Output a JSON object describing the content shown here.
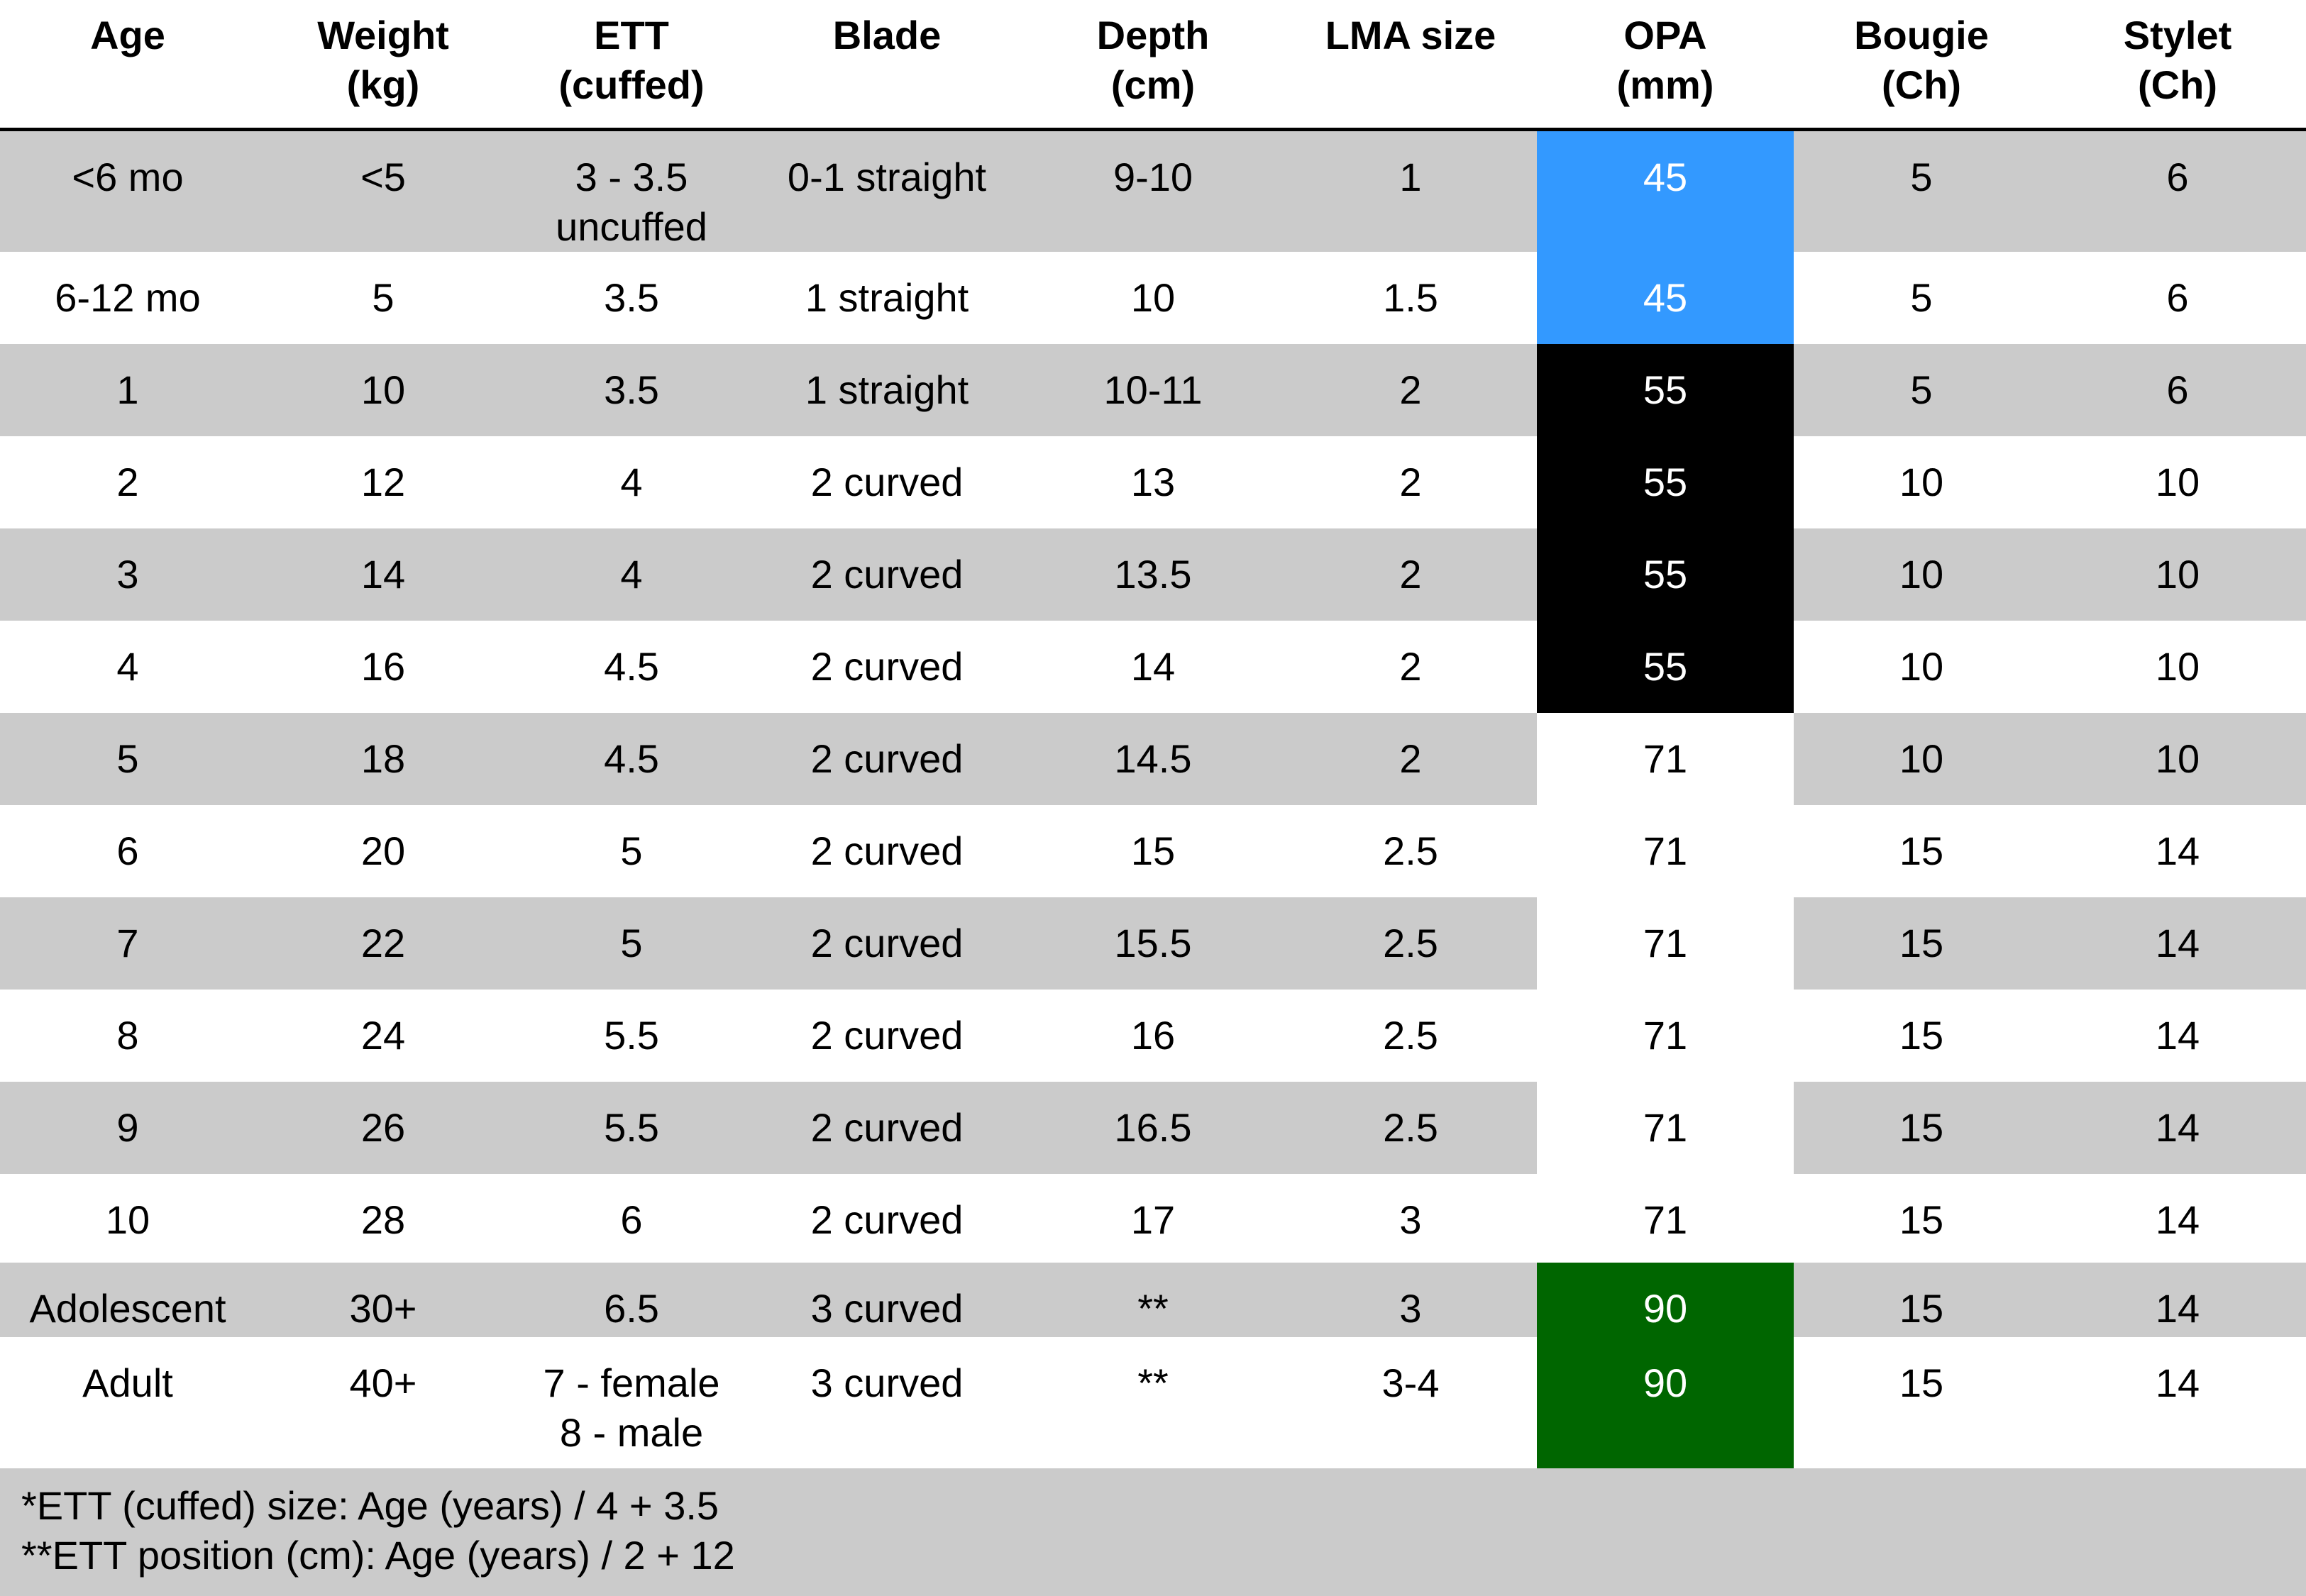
{
  "columns": [
    {
      "label": [
        "Age"
      ]
    },
    {
      "label": [
        "Weight",
        "(kg)"
      ]
    },
    {
      "label": [
        "ETT",
        "(cuffed)"
      ]
    },
    {
      "label": [
        "Blade"
      ]
    },
    {
      "label": [
        "Depth",
        "(cm)"
      ]
    },
    {
      "label": [
        "LMA size"
      ]
    },
    {
      "label": [
        "OPA",
        "(mm)"
      ]
    },
    {
      "label": [
        "Bougie",
        "(Ch)"
      ]
    },
    {
      "label": [
        "Stylet",
        "(Ch)"
      ]
    }
  ],
  "colors": {
    "stripe": "#cbcbcb",
    "white": "#ffffff",
    "opa_blue": "#3399ff",
    "opa_black": "#000000",
    "opa_green": "#006600"
  },
  "rows": [
    {
      "cells": [
        [
          "<6 mo"
        ],
        [
          "<5"
        ],
        [
          "3 - 3.5",
          "uncuffed"
        ],
        [
          "0-1 straight"
        ],
        [
          "9-10"
        ],
        [
          "1"
        ],
        [
          "45"
        ],
        [
          "5"
        ],
        [
          "6"
        ]
      ],
      "opa_color": "opa_blue"
    },
    {
      "cells": [
        [
          "6-12 mo"
        ],
        [
          "5"
        ],
        [
          "3.5"
        ],
        [
          "1 straight"
        ],
        [
          "10"
        ],
        [
          "1.5"
        ],
        [
          "45"
        ],
        [
          "5"
        ],
        [
          "6"
        ]
      ],
      "opa_color": "opa_blue"
    },
    {
      "cells": [
        [
          "1"
        ],
        [
          "10"
        ],
        [
          "3.5"
        ],
        [
          "1 straight"
        ],
        [
          "10-11"
        ],
        [
          "2"
        ],
        [
          "55"
        ],
        [
          "5"
        ],
        [
          "6"
        ]
      ],
      "opa_color": "opa_black"
    },
    {
      "cells": [
        [
          "2"
        ],
        [
          "12"
        ],
        [
          "4"
        ],
        [
          "2 curved"
        ],
        [
          "13"
        ],
        [
          "2"
        ],
        [
          "55"
        ],
        [
          "10"
        ],
        [
          "10"
        ]
      ],
      "opa_color": "opa_black"
    },
    {
      "cells": [
        [
          "3"
        ],
        [
          "14"
        ],
        [
          "4"
        ],
        [
          "2 curved"
        ],
        [
          "13.5"
        ],
        [
          "2"
        ],
        [
          "55"
        ],
        [
          "10"
        ],
        [
          "10"
        ]
      ],
      "opa_color": "opa_black"
    },
    {
      "cells": [
        [
          "4"
        ],
        [
          "16"
        ],
        [
          "4.5"
        ],
        [
          "2 curved"
        ],
        [
          "14"
        ],
        [
          "2"
        ],
        [
          "55"
        ],
        [
          "10"
        ],
        [
          "10"
        ]
      ],
      "opa_color": "opa_black"
    },
    {
      "cells": [
        [
          "5"
        ],
        [
          "18"
        ],
        [
          "4.5"
        ],
        [
          "2 curved"
        ],
        [
          "14.5"
        ],
        [
          "2"
        ],
        [
          "71"
        ],
        [
          "10"
        ],
        [
          "10"
        ]
      ],
      "opa_color": "white"
    },
    {
      "cells": [
        [
          "6"
        ],
        [
          "20"
        ],
        [
          "5"
        ],
        [
          "2 curved"
        ],
        [
          "15"
        ],
        [
          "2.5"
        ],
        [
          "71"
        ],
        [
          "15"
        ],
        [
          "14"
        ]
      ],
      "opa_color": "white"
    },
    {
      "cells": [
        [
          "7"
        ],
        [
          "22"
        ],
        [
          "5"
        ],
        [
          "2 curved"
        ],
        [
          "15.5"
        ],
        [
          "2.5"
        ],
        [
          "71"
        ],
        [
          "15"
        ],
        [
          "14"
        ]
      ],
      "opa_color": "white"
    },
    {
      "cells": [
        [
          "8"
        ],
        [
          "24"
        ],
        [
          "5.5"
        ],
        [
          "2 curved"
        ],
        [
          "16"
        ],
        [
          "2.5"
        ],
        [
          "71"
        ],
        [
          "15"
        ],
        [
          "14"
        ]
      ],
      "opa_color": "white"
    },
    {
      "cells": [
        [
          "9"
        ],
        [
          "26"
        ],
        [
          "5.5"
        ],
        [
          "2 curved"
        ],
        [
          "16.5"
        ],
        [
          "2.5"
        ],
        [
          "71"
        ],
        [
          "15"
        ],
        [
          "14"
        ]
      ],
      "opa_color": "white"
    },
    {
      "cells": [
        [
          "10"
        ],
        [
          "28"
        ],
        [
          "6"
        ],
        [
          "2 curved"
        ],
        [
          "17"
        ],
        [
          "3"
        ],
        [
          "71"
        ],
        [
          "15"
        ],
        [
          "14"
        ]
      ],
      "opa_color": "white"
    },
    {
      "cells": [
        [
          "Adolescent"
        ],
        [
          "30+"
        ],
        [
          "6.5"
        ],
        [
          "3 curved"
        ],
        [
          "**"
        ],
        [
          "3"
        ],
        [
          "90"
        ],
        [
          "15"
        ],
        [
          "14"
        ]
      ],
      "opa_color": "opa_green"
    },
    {
      "cells": [
        [
          "Adult"
        ],
        [
          "40+"
        ],
        [
          "7 - female",
          "8 - male"
        ],
        [
          "3 curved"
        ],
        [
          "**"
        ],
        [
          "3-4"
        ],
        [
          "90"
        ],
        [
          "15"
        ],
        [
          "14"
        ]
      ],
      "opa_color": "opa_green"
    }
  ],
  "footnotes": [
    "*ETT (cuffed) size: Age (years) / 4 + 3.5",
    "**ETT position (cm): Age (years) / 2 + 12"
  ]
}
